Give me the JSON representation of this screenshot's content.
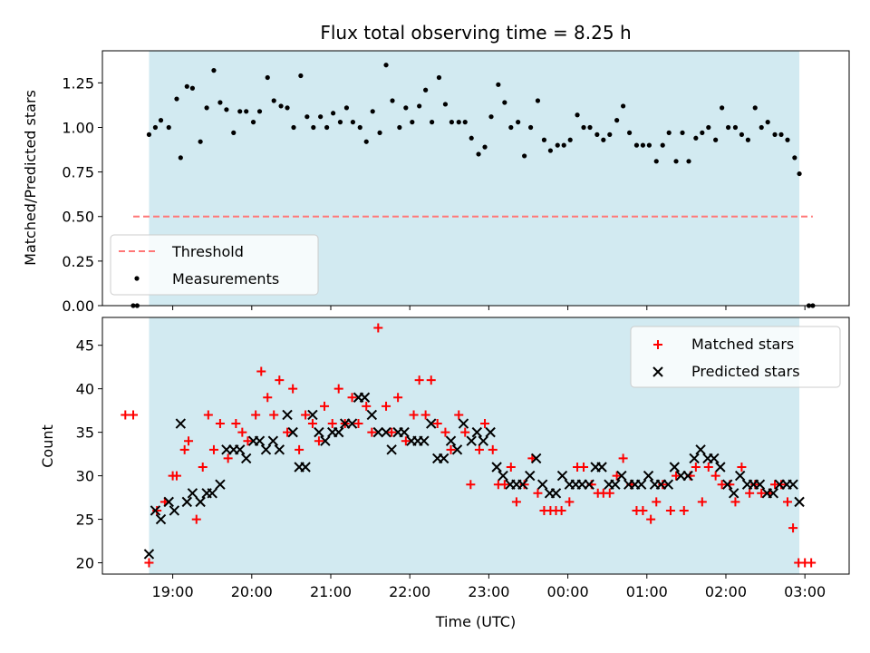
{
  "chart_data": {
    "title": "Flux total observing time = 8.25 h",
    "xlabel": "Time (UTC)",
    "time_ticks": [
      "19:00",
      "20:00",
      "21:00",
      "22:00",
      "23:00",
      "00:00",
      "01:00",
      "02:00",
      "03:00"
    ],
    "observing_window": {
      "start": 18.7,
      "end": 26.93
    },
    "shade_color": "#add8e6",
    "panels": [
      {
        "type": "scatter",
        "ylabel": "Matched/Predicted stars",
        "ylim": [
          0,
          1.43
        ],
        "yticks": [
          "0.00",
          "0.25",
          "0.50",
          "0.75",
          "1.00",
          "1.25"
        ],
        "threshold": 0.5,
        "threshold_range": [
          18.5,
          27.1
        ],
        "threshold_color": "#ff7777",
        "legend": [
          "Threshold",
          "Measurements"
        ],
        "series": [
          {
            "name": "Measurements",
            "color": "#000000",
            "x": [
              18.5,
              18.55,
              18.7,
              18.78,
              18.85,
              18.95,
              19.05,
              19.1,
              19.18,
              19.25,
              19.35,
              19.43,
              19.52,
              19.6,
              19.68,
              19.77,
              19.85,
              19.93,
              20.02,
              20.1,
              20.2,
              20.28,
              20.37,
              20.45,
              20.53,
              20.62,
              20.7,
              20.78,
              20.87,
              20.95,
              21.03,
              21.12,
              21.2,
              21.28,
              21.37,
              21.45,
              21.53,
              21.62,
              21.7,
              21.78,
              21.87,
              21.95,
              22.03,
              22.12,
              22.2,
              22.28,
              22.37,
              22.45,
              22.53,
              22.62,
              22.7,
              22.78,
              22.87,
              22.95,
              23.03,
              23.12,
              23.2,
              23.28,
              23.37,
              23.45,
              23.53,
              23.62,
              23.7,
              23.78,
              23.87,
              23.95,
              24.03,
              24.12,
              24.2,
              24.28,
              24.37,
              24.45,
              24.53,
              24.62,
              24.7,
              24.78,
              24.87,
              24.95,
              25.03,
              25.12,
              25.2,
              25.28,
              25.37,
              25.45,
              25.53,
              25.62,
              25.7,
              25.78,
              25.87,
              25.95,
              26.03,
              26.12,
              26.2,
              26.28,
              26.37,
              26.45,
              26.53,
              26.62,
              26.7,
              26.78,
              26.87,
              26.93,
              27.05,
              27.1
            ],
            "y": [
              0.0,
              0.0,
              0.96,
              1.0,
              1.04,
              1.0,
              1.16,
              0.83,
              1.23,
              1.22,
              0.92,
              1.11,
              1.32,
              1.14,
              1.1,
              0.97,
              1.09,
              1.09,
              1.03,
              1.09,
              1.28,
              1.15,
              1.12,
              1.11,
              1.0,
              1.29,
              1.06,
              1.0,
              1.06,
              1.0,
              1.08,
              1.03,
              1.11,
              1.03,
              1.0,
              0.92,
              1.09,
              0.97,
              1.35,
              1.15,
              1.0,
              1.11,
              1.03,
              1.12,
              1.21,
              1.03,
              1.28,
              1.13,
              1.03,
              1.03,
              1.03,
              0.94,
              0.85,
              0.89,
              1.06,
              1.24,
              1.14,
              1.0,
              1.03,
              0.84,
              1.0,
              1.15,
              0.93,
              0.87,
              0.9,
              0.9,
              0.93,
              1.07,
              1.0,
              1.0,
              0.96,
              0.93,
              0.96,
              1.04,
              1.12,
              0.97,
              0.9,
              0.9,
              0.9,
              0.81,
              0.9,
              0.97,
              0.81,
              0.97,
              0.81,
              0.94,
              0.97,
              1.0,
              0.93,
              1.11,
              1.0,
              1.0,
              0.96,
              0.93,
              1.11,
              1.0,
              1.03,
              0.96,
              0.96,
              0.93,
              0.83,
              0.74,
              0.0,
              0.0
            ]
          }
        ]
      },
      {
        "type": "scatter",
        "ylabel": "Count",
        "ylim": [
          18.7,
          48.2
        ],
        "yticks": [
          "20",
          "25",
          "30",
          "35",
          "40",
          "45"
        ],
        "legend": [
          "Matched stars",
          "Predicted stars"
        ],
        "series": [
          {
            "name": "Matched stars",
            "marker": "+",
            "color": "#ff0000",
            "x": [
              18.4,
              18.5,
              18.7,
              18.8,
              18.9,
              19.0,
              19.05,
              19.15,
              19.2,
              19.3,
              19.38,
              19.45,
              19.52,
              19.6,
              19.7,
              19.8,
              19.88,
              19.95,
              20.05,
              20.12,
              20.2,
              20.28,
              20.35,
              20.45,
              20.52,
              20.6,
              20.68,
              20.77,
              20.85,
              20.92,
              21.02,
              21.1,
              21.18,
              21.27,
              21.35,
              21.45,
              21.52,
              21.6,
              21.7,
              21.77,
              21.85,
              21.95,
              22.05,
              22.12,
              22.2,
              22.27,
              22.35,
              22.45,
              22.52,
              22.62,
              22.7,
              22.77,
              22.88,
              22.95,
              23.05,
              23.12,
              23.2,
              23.28,
              23.35,
              23.45,
              23.55,
              23.62,
              23.7,
              23.78,
              23.85,
              23.92,
              24.02,
              24.12,
              24.2,
              24.3,
              24.38,
              24.45,
              24.53,
              24.62,
              24.7,
              24.8,
              24.87,
              24.95,
              25.05,
              25.12,
              25.2,
              25.3,
              25.37,
              25.47,
              25.55,
              25.62,
              25.7,
              25.78,
              25.87,
              25.95,
              26.05,
              26.12,
              26.2,
              26.3,
              26.37,
              26.45,
              26.55,
              26.62,
              26.7,
              26.78,
              26.85,
              26.92,
              27.0,
              27.08
            ],
            "y": [
              37,
              37,
              20,
              26,
              27,
              30,
              30,
              33,
              34,
              25,
              31,
              37,
              33,
              36,
              32,
              36,
              35,
              34,
              37,
              42,
              39,
              37,
              41,
              35,
              40,
              33,
              37,
              36,
              34,
              38,
              36,
              40,
              36,
              39,
              36,
              38,
              35,
              47,
              38,
              35,
              39,
              34,
              37,
              41,
              37,
              41,
              36,
              35,
              33,
              37,
              35,
              29,
              33,
              36,
              33,
              29,
              29,
              31,
              27,
              29,
              32,
              28,
              26,
              26,
              26,
              26,
              27,
              31,
              31,
              29,
              28,
              28,
              28,
              30,
              32,
              29,
              26,
              26,
              25,
              27,
              29,
              26,
              30,
              26,
              30,
              31,
              27,
              31,
              30,
              29,
              29,
              27,
              31,
              28,
              29,
              28,
              28,
              29,
              29,
              27,
              24,
              20,
              20,
              20
            ]
          },
          {
            "name": "Predicted stars",
            "marker": "x",
            "color": "#000000",
            "x": [
              18.7,
              18.78,
              18.85,
              18.95,
              19.02,
              19.1,
              19.18,
              19.25,
              19.35,
              19.43,
              19.5,
              19.6,
              19.68,
              19.77,
              19.85,
              19.93,
              20.02,
              20.1,
              20.18,
              20.27,
              20.35,
              20.45,
              20.52,
              20.6,
              20.68,
              20.77,
              20.85,
              20.93,
              21.02,
              21.1,
              21.18,
              21.27,
              21.35,
              21.43,
              21.52,
              21.6,
              21.7,
              21.77,
              21.85,
              21.93,
              22.02,
              22.1,
              22.18,
              22.27,
              22.35,
              22.43,
              22.52,
              22.6,
              22.68,
              22.78,
              22.85,
              22.93,
              23.02,
              23.1,
              23.18,
              23.27,
              23.35,
              23.43,
              23.52,
              23.6,
              23.68,
              23.77,
              23.85,
              23.93,
              24.02,
              24.1,
              24.18,
              24.27,
              24.35,
              24.43,
              24.52,
              24.6,
              24.68,
              24.77,
              24.85,
              24.93,
              25.02,
              25.1,
              25.18,
              25.27,
              25.35,
              25.43,
              25.52,
              25.6,
              25.68,
              25.77,
              25.85,
              25.93,
              26.02,
              26.1,
              26.18,
              26.27,
              26.35,
              26.43,
              26.52,
              26.6,
              26.68,
              26.77,
              26.85,
              26.93
            ],
            "y": [
              21,
              26,
              25,
              27,
              26,
              36,
              27,
              28,
              27,
              28,
              28,
              29,
              33,
              33,
              33,
              32,
              34,
              34,
              33,
              34,
              33,
              37,
              35,
              31,
              31,
              37,
              35,
              34,
              35,
              35,
              36,
              36,
              39,
              39,
              37,
              35,
              35,
              33,
              35,
              35,
              34,
              34,
              34,
              36,
              32,
              32,
              34,
              33,
              36,
              34,
              35,
              34,
              35,
              31,
              30,
              29,
              29,
              29,
              30,
              32,
              29,
              28,
              28,
              30,
              29,
              29,
              29,
              29,
              31,
              31,
              29,
              29,
              30,
              29,
              29,
              29,
              30,
              29,
              29,
              29,
              31,
              30,
              30,
              32,
              33,
              32,
              32,
              31,
              29,
              28,
              30,
              29,
              29,
              29,
              28,
              28,
              29,
              29,
              29,
              27
            ]
          }
        ]
      }
    ]
  }
}
